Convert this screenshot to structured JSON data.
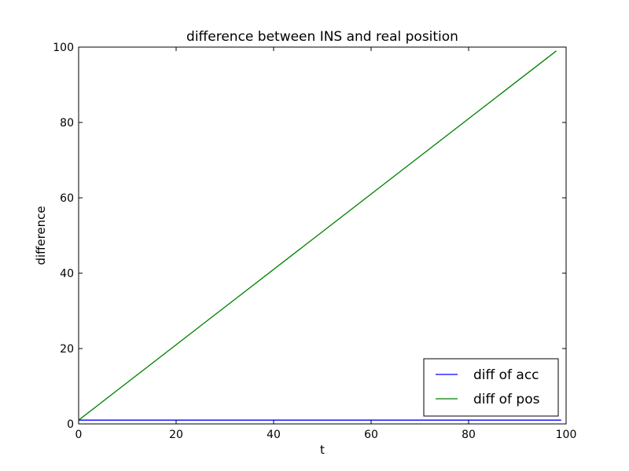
{
  "chart_data": {
    "type": "line",
    "title": "difference between INS and real position",
    "xlabel": "t",
    "ylabel": "difference",
    "xlim": [
      0,
      100
    ],
    "ylim": [
      0,
      100
    ],
    "xticks": [
      0,
      20,
      40,
      60,
      80,
      100
    ],
    "yticks": [
      0,
      20,
      40,
      60,
      80,
      100
    ],
    "grid": false,
    "legend_position": "lower-right",
    "series": [
      {
        "name": "diff of acc",
        "color": "#0000ff",
        "x": [
          0,
          99
        ],
        "y": [
          1,
          1
        ]
      },
      {
        "name": "diff of pos",
        "color": "#008000",
        "x": [
          0,
          98
        ],
        "y": [
          1,
          99
        ]
      }
    ]
  }
}
